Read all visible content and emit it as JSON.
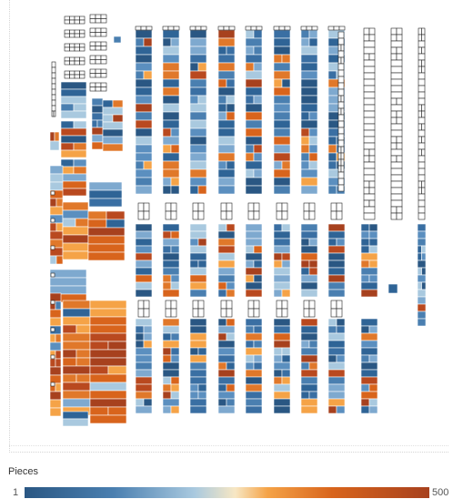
{
  "legend": {
    "title": "Pieces",
    "min_label": "1",
    "max_label": "500",
    "colors": [
      "#2a5783",
      "#4a7fb0",
      "#a9c9df",
      "#f7e7c4",
      "#f5a347",
      "#d8641c",
      "#a7411e"
    ]
  }
}
